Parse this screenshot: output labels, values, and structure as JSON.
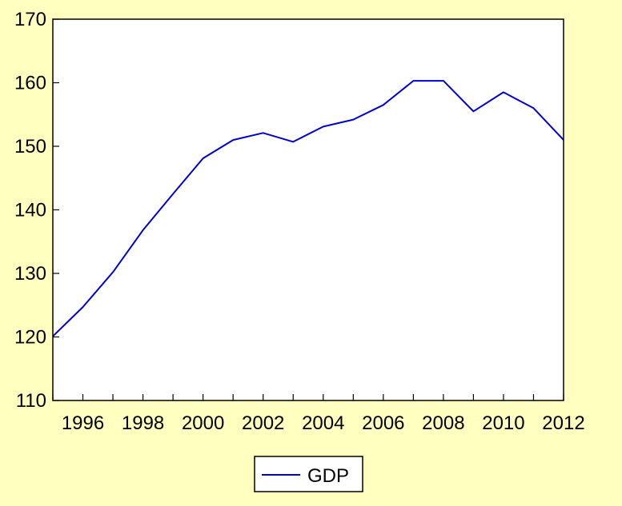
{
  "chart_data": {
    "type": "line",
    "title": "",
    "xlabel": "",
    "ylabel": "",
    "ylim": [
      110,
      170
    ],
    "yticks": [
      110,
      120,
      130,
      140,
      150,
      160,
      170
    ],
    "xlim": [
      1995,
      2012
    ],
    "xtick_labels": [
      "1996",
      "1998",
      "2000",
      "2002",
      "2004",
      "2006",
      "2008",
      "2010",
      "2012"
    ],
    "x": [
      1995,
      1996,
      1997,
      1998,
      1999,
      2000,
      2001,
      2002,
      2003,
      2004,
      2005,
      2006,
      2007,
      2008,
      2009,
      2010,
      2011,
      2012
    ],
    "series": [
      {
        "name": "GDP",
        "color": "#0000CC",
        "values": [
          120.1,
          124.7,
          130.2,
          136.8,
          142.5,
          148.1,
          151.0,
          152.1,
          150.7,
          153.1,
          154.2,
          156.5,
          160.3,
          160.3,
          155.5,
          158.5,
          156.0,
          151.0
        ]
      }
    ],
    "legend": {
      "position": "bottom-center",
      "entries": [
        "GDP"
      ]
    },
    "grid": false,
    "background": "#FFFFC0",
    "plot_background": "#FFFFFF"
  }
}
